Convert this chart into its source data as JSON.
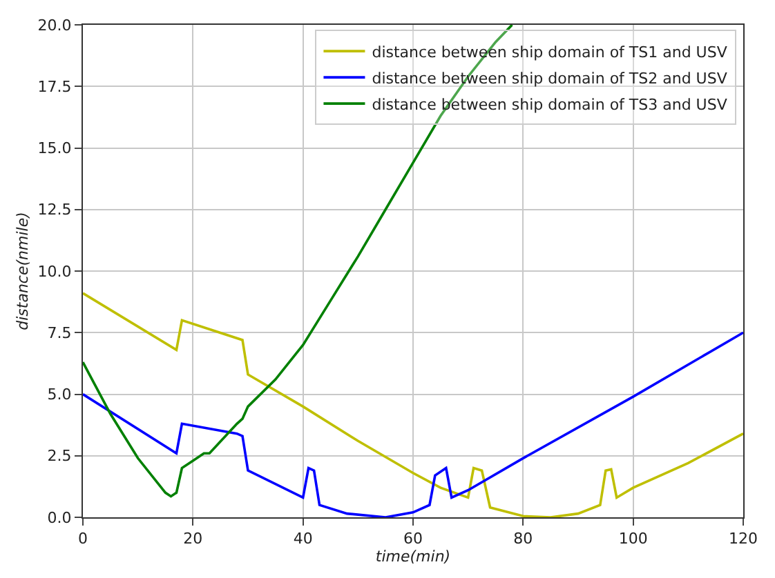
{
  "chart_data": {
    "type": "line",
    "xlabel": "time(min)",
    "ylabel": "distance(nmile)",
    "xlim": [
      0,
      120
    ],
    "ylim": [
      0,
      20
    ],
    "xticks": [
      0,
      20,
      40,
      60,
      80,
      100,
      120
    ],
    "yticks": [
      {
        "value": 0,
        "label": "0.0"
      },
      {
        "value": 2.5,
        "label": "2.5"
      },
      {
        "value": 5,
        "label": "5.0"
      },
      {
        "value": 7.5,
        "label": "7.5"
      },
      {
        "value": 10,
        "label": "10.0"
      },
      {
        "value": 12.5,
        "label": "12.5"
      },
      {
        "value": 15,
        "label": "15.0"
      },
      {
        "value": 17.5,
        "label": "17.5"
      },
      {
        "value": 20,
        "label": "20.0"
      }
    ],
    "grid": true,
    "legend": "top right",
    "marker": "none",
    "line_style": "solid",
    "series": [
      {
        "name": "distance between ship domain of TS1 and USV",
        "color": "#bfbf00",
        "x": [
          0,
          17,
          18,
          29,
          30,
          40,
          50,
          60,
          65,
          70,
          71,
          72.5,
          74,
          80,
          85,
          90,
          94,
          95,
          96,
          97,
          100,
          110,
          120
        ],
        "values": [
          9.1,
          6.8,
          8.0,
          7.2,
          5.8,
          4.5,
          3.1,
          1.8,
          1.2,
          0.8,
          2.0,
          1.9,
          0.4,
          0.05,
          0,
          0.15,
          0.5,
          1.9,
          1.95,
          0.8,
          1.2,
          2.2,
          3.4
        ]
      },
      {
        "name": "distance between ship domain of TS2 and USV",
        "color": "#0000ff",
        "x": [
          0,
          17,
          18,
          28,
          29,
          30,
          40,
          41,
          42,
          43,
          48,
          55,
          60,
          63,
          64,
          66,
          67,
          70,
          80,
          100,
          120
        ],
        "values": [
          5.0,
          2.6,
          3.8,
          3.4,
          3.3,
          1.9,
          0.8,
          2.0,
          1.9,
          0.5,
          0.15,
          0,
          0.2,
          0.5,
          1.7,
          2.0,
          0.8,
          1.1,
          2.4,
          4.9,
          7.5
        ]
      },
      {
        "name": "distance between ship domain of TS3 and USV",
        "color": "#008000",
        "x": [
          0,
          5,
          10,
          15,
          16,
          17,
          18,
          20,
          22,
          23,
          28,
          29,
          30,
          35,
          40,
          45,
          50,
          55,
          60,
          65,
          70,
          75,
          78
        ],
        "values": [
          6.3,
          4.2,
          2.4,
          1.0,
          0.85,
          1.0,
          2.0,
          2.3,
          2.6,
          2.6,
          3.8,
          4.0,
          4.5,
          5.6,
          7.0,
          8.8,
          10.6,
          12.5,
          14.4,
          16.3,
          17.9,
          19.3,
          20.0
        ]
      }
    ]
  }
}
